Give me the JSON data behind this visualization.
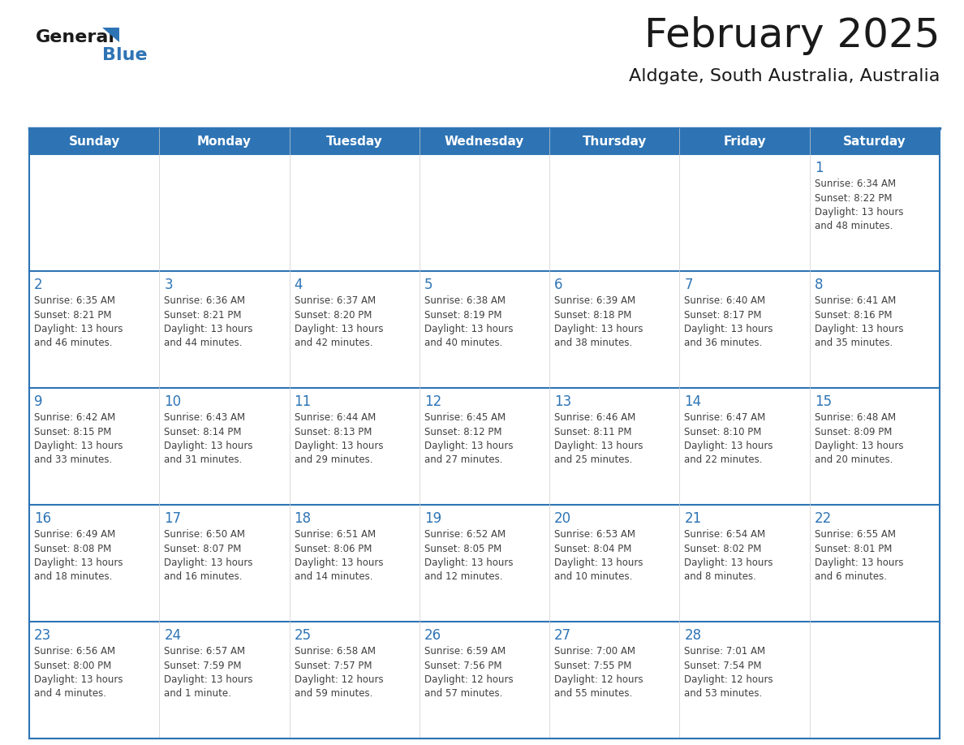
{
  "title": "February 2025",
  "subtitle": "Aldgate, South Australia, Australia",
  "header_bg": "#2e74b5",
  "header_text_color": "#ffffff",
  "cell_bg": "#ffffff",
  "cell_bg_alt": "#f2f2f2",
  "border_color": "#2e74b5",
  "row_line_color": "#2e74b5",
  "day_headers": [
    "Sunday",
    "Monday",
    "Tuesday",
    "Wednesday",
    "Thursday",
    "Friday",
    "Saturday"
  ],
  "title_color": "#1a1a1a",
  "subtitle_color": "#1a1a1a",
  "day_num_color": "#2e74b5",
  "cell_text_color": "#404040",
  "logo_general_color": "#1a1a1a",
  "logo_blue_color": "#2e74b5",
  "weeks": [
    [
      {
        "day": null,
        "sunrise": null,
        "sunset": null,
        "daylight": null
      },
      {
        "day": null,
        "sunrise": null,
        "sunset": null,
        "daylight": null
      },
      {
        "day": null,
        "sunrise": null,
        "sunset": null,
        "daylight": null
      },
      {
        "day": null,
        "sunrise": null,
        "sunset": null,
        "daylight": null
      },
      {
        "day": null,
        "sunrise": null,
        "sunset": null,
        "daylight": null
      },
      {
        "day": null,
        "sunrise": null,
        "sunset": null,
        "daylight": null
      },
      {
        "day": 1,
        "sunrise": "6:34 AM",
        "sunset": "8:22 PM",
        "daylight_line1": "Daylight: 13 hours",
        "daylight_line2": "and 48 minutes."
      }
    ],
    [
      {
        "day": 2,
        "sunrise": "6:35 AM",
        "sunset": "8:21 PM",
        "daylight_line1": "Daylight: 13 hours",
        "daylight_line2": "and 46 minutes."
      },
      {
        "day": 3,
        "sunrise": "6:36 AM",
        "sunset": "8:21 PM",
        "daylight_line1": "Daylight: 13 hours",
        "daylight_line2": "and 44 minutes."
      },
      {
        "day": 4,
        "sunrise": "6:37 AM",
        "sunset": "8:20 PM",
        "daylight_line1": "Daylight: 13 hours",
        "daylight_line2": "and 42 minutes."
      },
      {
        "day": 5,
        "sunrise": "6:38 AM",
        "sunset": "8:19 PM",
        "daylight_line1": "Daylight: 13 hours",
        "daylight_line2": "and 40 minutes."
      },
      {
        "day": 6,
        "sunrise": "6:39 AM",
        "sunset": "8:18 PM",
        "daylight_line1": "Daylight: 13 hours",
        "daylight_line2": "and 38 minutes."
      },
      {
        "day": 7,
        "sunrise": "6:40 AM",
        "sunset": "8:17 PM",
        "daylight_line1": "Daylight: 13 hours",
        "daylight_line2": "and 36 minutes."
      },
      {
        "day": 8,
        "sunrise": "6:41 AM",
        "sunset": "8:16 PM",
        "daylight_line1": "Daylight: 13 hours",
        "daylight_line2": "and 35 minutes."
      }
    ],
    [
      {
        "day": 9,
        "sunrise": "6:42 AM",
        "sunset": "8:15 PM",
        "daylight_line1": "Daylight: 13 hours",
        "daylight_line2": "and 33 minutes."
      },
      {
        "day": 10,
        "sunrise": "6:43 AM",
        "sunset": "8:14 PM",
        "daylight_line1": "Daylight: 13 hours",
        "daylight_line2": "and 31 minutes."
      },
      {
        "day": 11,
        "sunrise": "6:44 AM",
        "sunset": "8:13 PM",
        "daylight_line1": "Daylight: 13 hours",
        "daylight_line2": "and 29 minutes."
      },
      {
        "day": 12,
        "sunrise": "6:45 AM",
        "sunset": "8:12 PM",
        "daylight_line1": "Daylight: 13 hours",
        "daylight_line2": "and 27 minutes."
      },
      {
        "day": 13,
        "sunrise": "6:46 AM",
        "sunset": "8:11 PM",
        "daylight_line1": "Daylight: 13 hours",
        "daylight_line2": "and 25 minutes."
      },
      {
        "day": 14,
        "sunrise": "6:47 AM",
        "sunset": "8:10 PM",
        "daylight_line1": "Daylight: 13 hours",
        "daylight_line2": "and 22 minutes."
      },
      {
        "day": 15,
        "sunrise": "6:48 AM",
        "sunset": "8:09 PM",
        "daylight_line1": "Daylight: 13 hours",
        "daylight_line2": "and 20 minutes."
      }
    ],
    [
      {
        "day": 16,
        "sunrise": "6:49 AM",
        "sunset": "8:08 PM",
        "daylight_line1": "Daylight: 13 hours",
        "daylight_line2": "and 18 minutes."
      },
      {
        "day": 17,
        "sunrise": "6:50 AM",
        "sunset": "8:07 PM",
        "daylight_line1": "Daylight: 13 hours",
        "daylight_line2": "and 16 minutes."
      },
      {
        "day": 18,
        "sunrise": "6:51 AM",
        "sunset": "8:06 PM",
        "daylight_line1": "Daylight: 13 hours",
        "daylight_line2": "and 14 minutes."
      },
      {
        "day": 19,
        "sunrise": "6:52 AM",
        "sunset": "8:05 PM",
        "daylight_line1": "Daylight: 13 hours",
        "daylight_line2": "and 12 minutes."
      },
      {
        "day": 20,
        "sunrise": "6:53 AM",
        "sunset": "8:04 PM",
        "daylight_line1": "Daylight: 13 hours",
        "daylight_line2": "and 10 minutes."
      },
      {
        "day": 21,
        "sunrise": "6:54 AM",
        "sunset": "8:02 PM",
        "daylight_line1": "Daylight: 13 hours",
        "daylight_line2": "and 8 minutes."
      },
      {
        "day": 22,
        "sunrise": "6:55 AM",
        "sunset": "8:01 PM",
        "daylight_line1": "Daylight: 13 hours",
        "daylight_line2": "and 6 minutes."
      }
    ],
    [
      {
        "day": 23,
        "sunrise": "6:56 AM",
        "sunset": "8:00 PM",
        "daylight_line1": "Daylight: 13 hours",
        "daylight_line2": "and 4 minutes."
      },
      {
        "day": 24,
        "sunrise": "6:57 AM",
        "sunset": "7:59 PM",
        "daylight_line1": "Daylight: 13 hours",
        "daylight_line2": "and 1 minute."
      },
      {
        "day": 25,
        "sunrise": "6:58 AM",
        "sunset": "7:57 PM",
        "daylight_line1": "Daylight: 12 hours",
        "daylight_line2": "and 59 minutes."
      },
      {
        "day": 26,
        "sunrise": "6:59 AM",
        "sunset": "7:56 PM",
        "daylight_line1": "Daylight: 12 hours",
        "daylight_line2": "and 57 minutes."
      },
      {
        "day": 27,
        "sunrise": "7:00 AM",
        "sunset": "7:55 PM",
        "daylight_line1": "Daylight: 12 hours",
        "daylight_line2": "and 55 minutes."
      },
      {
        "day": 28,
        "sunrise": "7:01 AM",
        "sunset": "7:54 PM",
        "daylight_line1": "Daylight: 12 hours",
        "daylight_line2": "and 53 minutes."
      },
      {
        "day": null,
        "sunrise": null,
        "sunset": null,
        "daylight_line1": null,
        "daylight_line2": null
      }
    ]
  ]
}
